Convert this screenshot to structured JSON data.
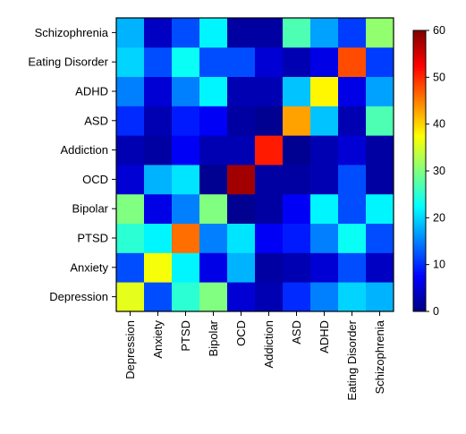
{
  "chart_data": {
    "type": "heatmap",
    "title": "",
    "xlabel": "",
    "ylabel": "",
    "x_categories": [
      "Depression",
      "Anxiety",
      "PTSD",
      "Bipolar",
      "OCD",
      "Addiction",
      "ASD",
      "ADHD",
      "Eating Disorder",
      "Schizophrenia"
    ],
    "y_categories": [
      "Depression",
      "Anxiety",
      "PTSD",
      "Bipolar",
      "OCD",
      "Addiction",
      "ASD",
      "ADHD",
      "Eating Disorder",
      "Schizophrenia"
    ],
    "values": [
      [
        36,
        12,
        25,
        30,
        5,
        3,
        10,
        15,
        20,
        18
      ],
      [
        12,
        37,
        22,
        6,
        18,
        2,
        3,
        5,
        12,
        4
      ],
      [
        25,
        22,
        46,
        15,
        21,
        7,
        9,
        15,
        23,
        12
      ],
      [
        30,
        6,
        15,
        30,
        1,
        2,
        7,
        22,
        12,
        22
      ],
      [
        5,
        18,
        21,
        1,
        58,
        2,
        2,
        3,
        12,
        2
      ],
      [
        3,
        2,
        7,
        3,
        3,
        51,
        1,
        3,
        5,
        2
      ],
      [
        10,
        3,
        9,
        7,
        2,
        1,
        43,
        19,
        3,
        27
      ],
      [
        15,
        5,
        15,
        22,
        3,
        3,
        19,
        38,
        6,
        17
      ],
      [
        20,
        12,
        23,
        12,
        12,
        5,
        3,
        6,
        48,
        11
      ],
      [
        18,
        4,
        12,
        22,
        2,
        2,
        27,
        17,
        11,
        31
      ]
    ],
    "colorbar": {
      "min": 0,
      "max": 60,
      "ticks": [
        0,
        10,
        20,
        30,
        40,
        50,
        60
      ],
      "colormap": "jet"
    },
    "grid": false
  }
}
